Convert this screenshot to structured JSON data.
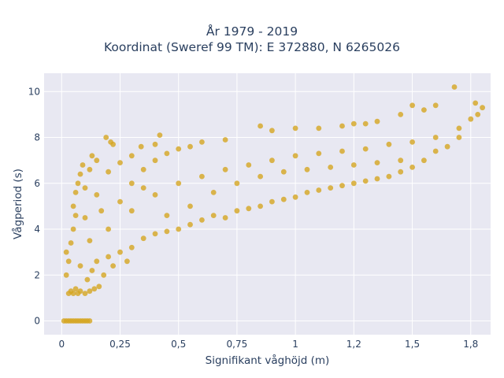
{
  "chart_data": {
    "type": "scatter",
    "title": "År 1979 - 2019",
    "subtitle": "Koordinat (Sweref 99 TM): E 372880, N 6265026",
    "xlabel": "Signifikant våghöjd (m)",
    "ylabel": "Vågperiod (s)",
    "xlim": [
      -0.075,
      1.835
    ],
    "ylim": [
      -0.6,
      10.8
    ],
    "x_ticks": [
      0,
      0.25,
      0.5,
      0.75,
      1,
      1.25,
      1.5,
      1.75
    ],
    "x_tick_labels": [
      "0",
      "0,25",
      "0,5",
      "0,75",
      "1",
      "1,2",
      "1,5",
      "1,8"
    ],
    "y_ticks": [
      0,
      2,
      4,
      6,
      8,
      10
    ],
    "y_tick_labels": [
      "0",
      "2",
      "4",
      "6",
      "8",
      "10"
    ],
    "grid": true,
    "marker_color": "#d4a520",
    "plot_background": "#e8e8f2",
    "series": [
      {
        "points": [
          [
            0.01,
            0
          ],
          [
            0.02,
            0
          ],
          [
            0.03,
            0
          ],
          [
            0.04,
            0
          ],
          [
            0.05,
            0
          ],
          [
            0.06,
            0
          ],
          [
            0.07,
            0
          ],
          [
            0.08,
            0
          ],
          [
            0.09,
            0
          ],
          [
            0.1,
            0
          ],
          [
            0.11,
            0
          ],
          [
            0.12,
            0
          ],
          [
            0.03,
            1.2
          ],
          [
            0.04,
            1.3
          ],
          [
            0.05,
            1.2
          ],
          [
            0.06,
            1.4
          ],
          [
            0.07,
            1.2
          ],
          [
            0.08,
            1.3
          ],
          [
            0.1,
            1.2
          ],
          [
            0.12,
            1.3
          ],
          [
            0.14,
            1.4
          ],
          [
            0.16,
            1.5
          ],
          [
            0.02,
            2.0
          ],
          [
            0.03,
            2.6
          ],
          [
            0.02,
            3.0
          ],
          [
            0.04,
            3.4
          ],
          [
            0.05,
            4.0
          ],
          [
            0.06,
            4.6
          ],
          [
            0.05,
            5.0
          ],
          [
            0.06,
            5.6
          ],
          [
            0.07,
            6.0
          ],
          [
            0.08,
            6.4
          ],
          [
            0.09,
            6.8
          ],
          [
            0.1,
            5.8
          ],
          [
            0.12,
            6.6
          ],
          [
            0.13,
            7.2
          ],
          [
            0.15,
            7.0
          ],
          [
            0.19,
            8.0
          ],
          [
            0.21,
            7.8
          ],
          [
            0.22,
            7.7
          ],
          [
            0.34,
            7.6
          ],
          [
            0.4,
            7.7
          ],
          [
            0.42,
            8.1
          ],
          [
            0.15,
            2.6
          ],
          [
            0.2,
            2.8
          ],
          [
            0.25,
            3.0
          ],
          [
            0.3,
            3.2
          ],
          [
            0.35,
            3.6
          ],
          [
            0.4,
            3.8
          ],
          [
            0.45,
            3.9
          ],
          [
            0.5,
            4.0
          ],
          [
            0.55,
            4.2
          ],
          [
            0.6,
            4.4
          ],
          [
            0.65,
            4.6
          ],
          [
            0.7,
            4.5
          ],
          [
            0.75,
            4.8
          ],
          [
            0.8,
            4.9
          ],
          [
            0.85,
            5.0
          ],
          [
            0.9,
            5.2
          ],
          [
            0.95,
            5.3
          ],
          [
            1.0,
            5.4
          ],
          [
            1.05,
            5.6
          ],
          [
            1.1,
            5.7
          ],
          [
            1.15,
            5.8
          ],
          [
            1.2,
            5.9
          ],
          [
            1.25,
            6.0
          ],
          [
            1.3,
            6.1
          ],
          [
            1.35,
            6.2
          ],
          [
            1.4,
            6.3
          ],
          [
            1.45,
            6.5
          ],
          [
            1.5,
            6.7
          ],
          [
            1.55,
            7.0
          ],
          [
            1.6,
            7.4
          ],
          [
            1.65,
            7.6
          ],
          [
            1.7,
            8.0
          ],
          [
            1.75,
            8.8
          ],
          [
            1.78,
            9.0
          ],
          [
            1.8,
            9.3
          ],
          [
            1.77,
            9.5
          ],
          [
            1.68,
            10.2
          ],
          [
            1.6,
            9.4
          ],
          [
            1.5,
            9.4
          ],
          [
            1.55,
            9.2
          ],
          [
            1.45,
            9.0
          ],
          [
            1.35,
            8.7
          ],
          [
            1.3,
            8.6
          ],
          [
            1.25,
            8.6
          ],
          [
            1.2,
            8.5
          ],
          [
            1.1,
            8.4
          ],
          [
            1.0,
            8.4
          ],
          [
            0.9,
            8.3
          ],
          [
            0.85,
            8.5
          ],
          [
            0.7,
            7.9
          ],
          [
            0.6,
            7.8
          ],
          [
            0.55,
            7.6
          ],
          [
            0.5,
            7.5
          ],
          [
            0.45,
            7.3
          ],
          [
            0.3,
            7.2
          ],
          [
            0.25,
            6.9
          ],
          [
            0.2,
            6.5
          ],
          [
            0.15,
            5.5
          ],
          [
            0.1,
            4.5
          ],
          [
            0.12,
            3.5
          ],
          [
            0.17,
            4.8
          ],
          [
            0.3,
            4.8
          ],
          [
            0.4,
            5.5
          ],
          [
            0.5,
            6.0
          ],
          [
            0.6,
            6.3
          ],
          [
            0.7,
            6.6
          ],
          [
            0.8,
            6.8
          ],
          [
            0.9,
            7.0
          ],
          [
            1.0,
            7.2
          ],
          [
            1.1,
            7.3
          ],
          [
            1.2,
            7.4
          ],
          [
            1.3,
            7.5
          ],
          [
            1.4,
            7.7
          ],
          [
            1.5,
            7.8
          ],
          [
            1.6,
            8.0
          ],
          [
            1.7,
            8.4
          ],
          [
            0.35,
            5.8
          ],
          [
            0.45,
            4.6
          ],
          [
            0.55,
            5.0
          ],
          [
            0.65,
            5.6
          ],
          [
            0.75,
            6.0
          ],
          [
            0.85,
            6.3
          ],
          [
            0.95,
            6.5
          ],
          [
            1.05,
            6.6
          ],
          [
            1.15,
            6.7
          ],
          [
            1.25,
            6.8
          ],
          [
            1.35,
            6.9
          ],
          [
            1.45,
            7.0
          ],
          [
            0.2,
            4.0
          ],
          [
            0.25,
            5.2
          ],
          [
            0.3,
            6.0
          ],
          [
            0.35,
            6.6
          ],
          [
            0.4,
            7.0
          ],
          [
            0.08,
            2.4
          ],
          [
            0.11,
            1.8
          ],
          [
            0.13,
            2.2
          ],
          [
            0.18,
            2.0
          ],
          [
            0.22,
            2.4
          ],
          [
            0.28,
            2.6
          ]
        ]
      }
    ]
  }
}
